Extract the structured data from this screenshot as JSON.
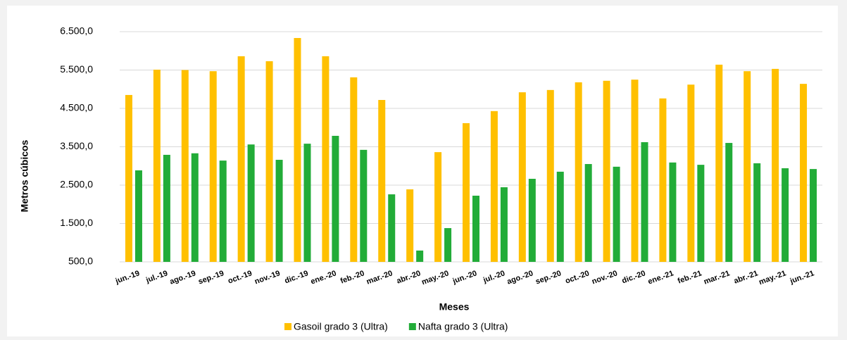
{
  "chart_data": {
    "type": "bar",
    "x_label": "Meses",
    "y_label": "Metros cúbicos",
    "categories": [
      "jun.-19",
      "jul.-19",
      "ago.-19",
      "sep.-19",
      "oct.-19",
      "nov.-19",
      "dic.-19",
      "ene.-20",
      "feb.-20",
      "mar.-20",
      "abr.-20",
      "may.-20",
      "jun.-20",
      "jul.-20",
      "ago.-20",
      "sep.-20",
      "oct.-20",
      "nov.-20",
      "dic.-20",
      "ene.-21",
      "feb.-21",
      "mar.-21",
      "abr.-21",
      "may.-21",
      "jun.-21"
    ],
    "series": [
      {
        "name": "Gasoil grado 3 (Ultra)",
        "color": "#ffc000",
        "values": [
          4850,
          5510,
          5500,
          5470,
          5860,
          5730,
          6335,
          5860,
          5310,
          4720,
          2390,
          3360,
          4115,
          4430,
          4920,
          4980,
          5180,
          5220,
          5250,
          4760,
          5120,
          5640,
          5470,
          5530,
          5140
        ]
      },
      {
        "name": "Nafta grado 3 (Ultra)",
        "color": "#22ac38",
        "values": [
          2885,
          3290,
          3330,
          3140,
          3560,
          3160,
          3580,
          3785,
          3420,
          2260,
          795,
          1380,
          2225,
          2445,
          2665,
          2850,
          3050,
          2980,
          3620,
          3090,
          3030,
          3600,
          3070,
          2940,
          2920
        ]
      }
    ],
    "ylim": [
      500,
      6500
    ],
    "yticks": [
      {
        "value": 500,
        "label": "500,0"
      },
      {
        "value": 1500,
        "label": "1.500,0"
      },
      {
        "value": 2500,
        "label": "2.500,0"
      },
      {
        "value": 3500,
        "label": "3.500,0"
      },
      {
        "value": 4500,
        "label": "4.500,0"
      },
      {
        "value": 5500,
        "label": "5.500,0"
      },
      {
        "value": 6500,
        "label": "6.500,0"
      }
    ],
    "grid": true,
    "legend": "bottom"
  }
}
